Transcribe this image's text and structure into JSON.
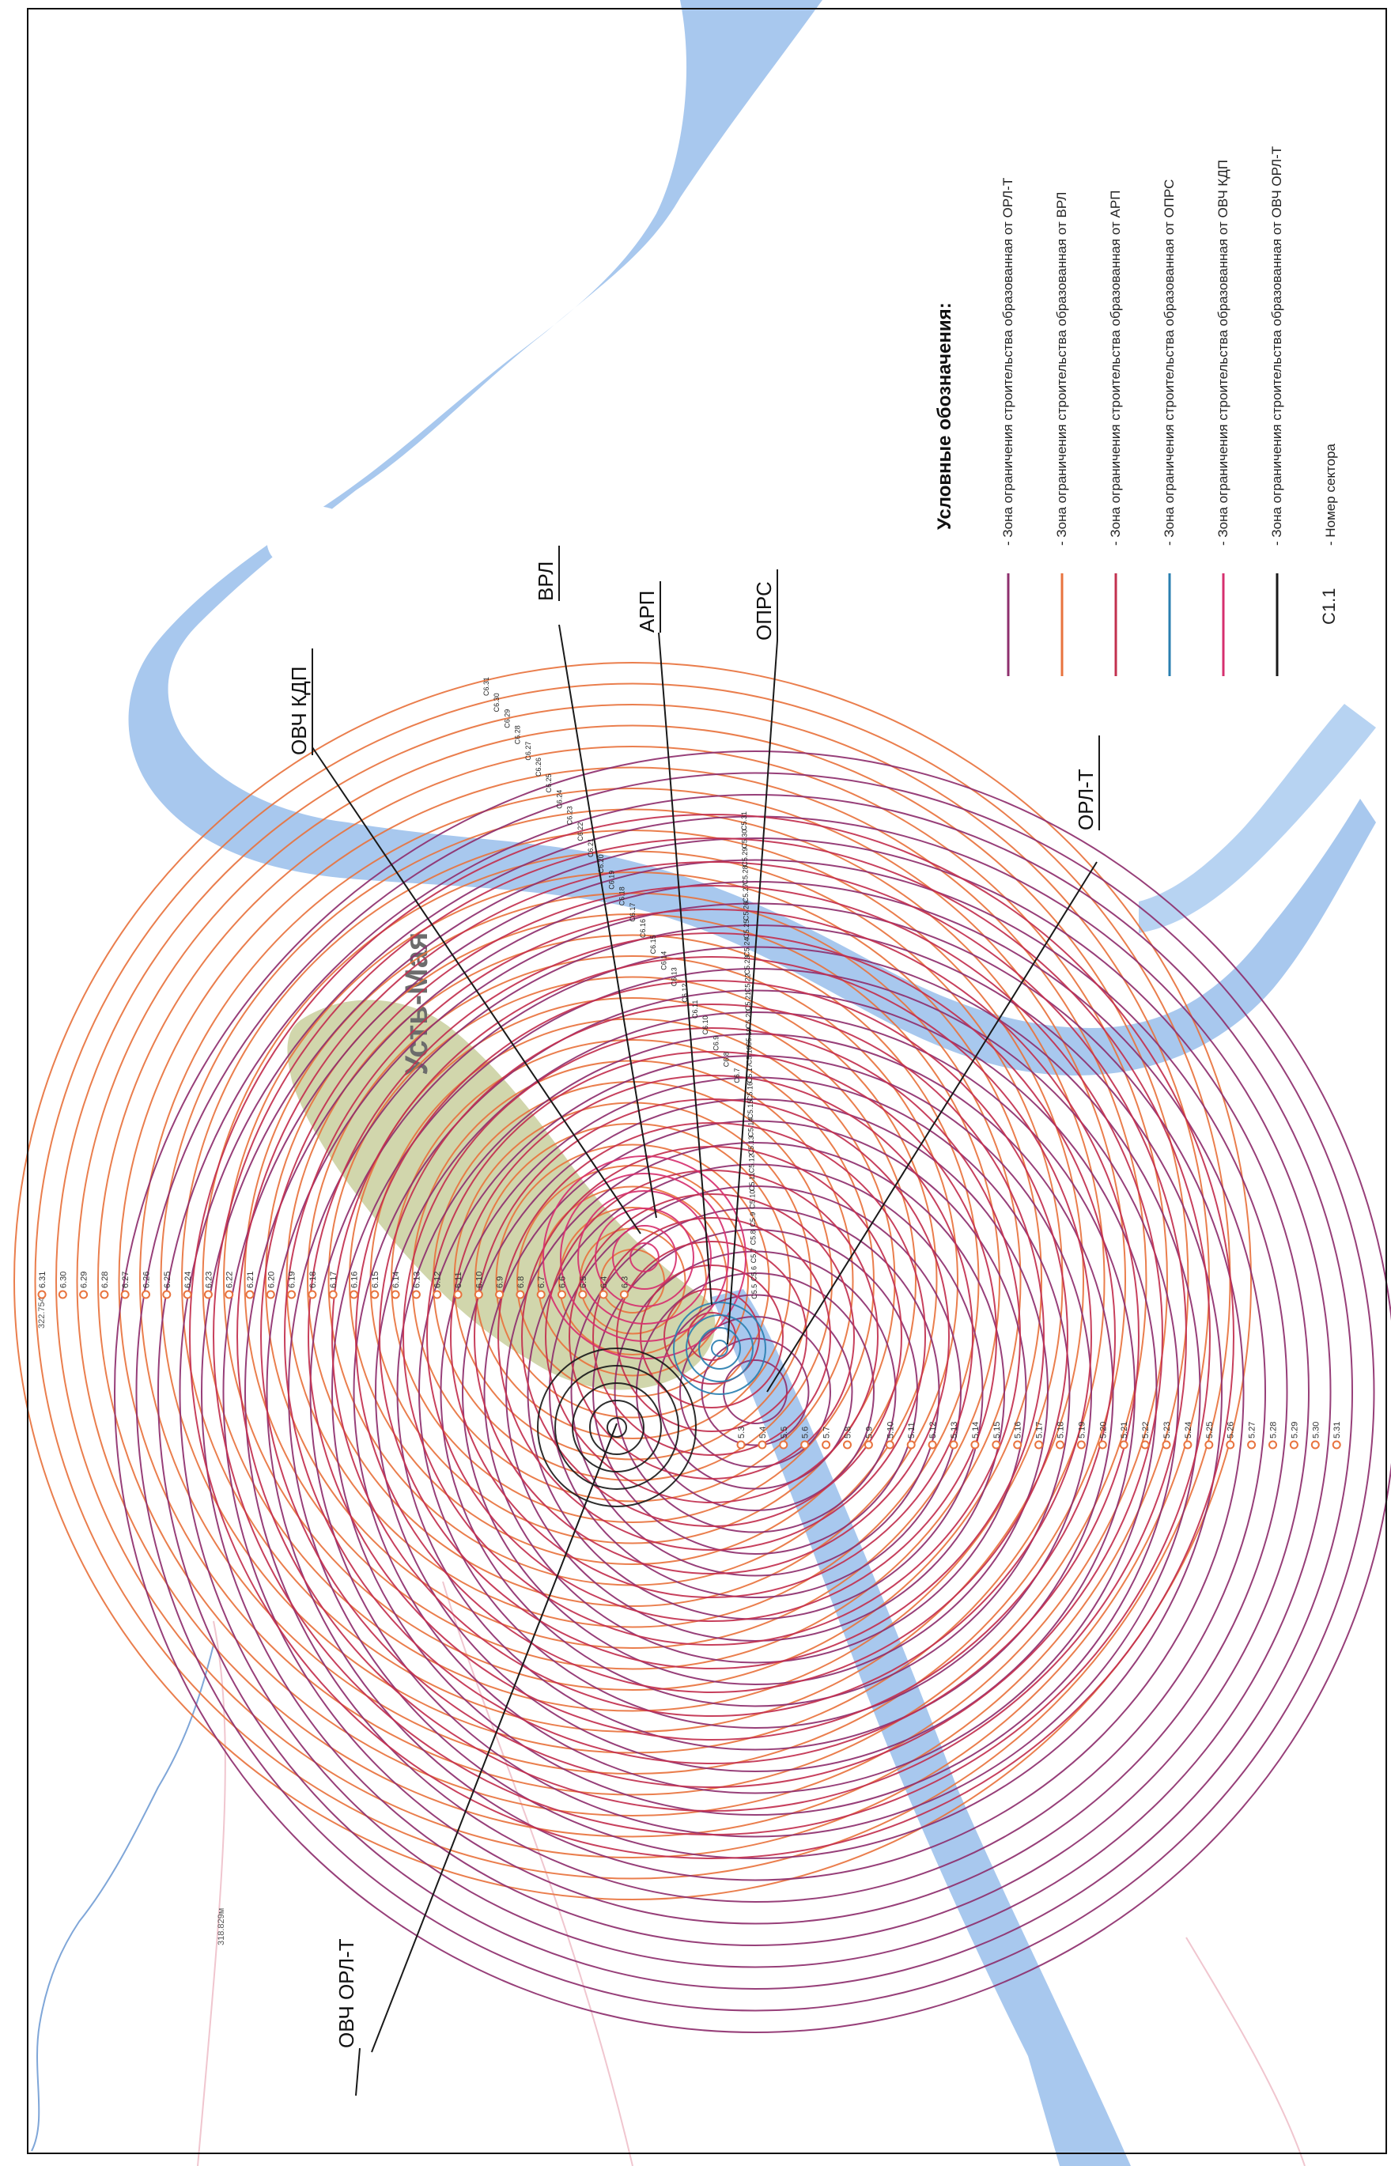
{
  "map": {
    "town_label": "Усть-Мая",
    "distance_labels": [
      "322.754м",
      "318.829м",
      "318.829м"
    ],
    "colors": {
      "river": "#a8c8ee",
      "river_edge": "#8fb6e4",
      "town": "#c9cf9e",
      "road": "#f0c6cf",
      "stream": "#7fa6d8",
      "orl_t": "#8e2f6e",
      "vrl": "#e8733e",
      "arp": "#c2304f",
      "oprs": "#2a7fb0",
      "ovch_kdp": "#d6306f",
      "ovch_orl_t": "#1a1a1a",
      "marker": "#f2a021"
    }
  },
  "sources": [
    {
      "id": "ovch_orl_t",
      "label": "ОВЧ ОРЛ-Т",
      "color_key": "ovch_orl_t"
    },
    {
      "id": "ovch_kdp",
      "label": "ОВЧ КДП",
      "color_key": "ovch_kdp"
    },
    {
      "id": "vrl",
      "label": "ВРЛ",
      "color_key": "vrl"
    },
    {
      "id": "arp",
      "label": "АРП",
      "color_key": "arp"
    },
    {
      "id": "oprs",
      "label": "ОПРС",
      "color_key": "oprs"
    },
    {
      "id": "orl_t",
      "label": "ОРЛ-Т",
      "color_key": "orl_t"
    }
  ],
  "sectors": {
    "vrl_row": [
      "6.31",
      "6.30",
      "6.29",
      "6.28",
      "6.27",
      "6.26",
      "6.25",
      "6.24",
      "6.23",
      "6.22",
      "6.21",
      "6.20",
      "6.19",
      "6.18",
      "6.17",
      "6.16",
      "6.15",
      "6.14",
      "6.13",
      "6.12",
      "6.11",
      "6.10",
      "6.9",
      "6.8",
      "6.7",
      "6.6",
      "6.5",
      "6.4",
      "6.3"
    ],
    "orl_row": [
      "5.3",
      "5.4",
      "5.5",
      "5.6",
      "5.7",
      "5.8",
      "5.9",
      "5.10",
      "5.11",
      "5.12",
      "5.13",
      "5.14",
      "5.15",
      "5.16",
      "5.17",
      "5.18",
      "5.19",
      "5.20",
      "5.21",
      "5.22",
      "5.23",
      "5.24",
      "5.25",
      "5.26",
      "5.27",
      "5.28",
      "5.29",
      "5.30",
      "5.31"
    ],
    "c6_diag": [
      "С6.31",
      "С6.30",
      "С6.29",
      "С6.28",
      "С6.27",
      "С6.26",
      "С6.25",
      "С6.24",
      "С6.23",
      "С6.22",
      "С6.21",
      "С6.20",
      "С6.19",
      "С6.18",
      "С6.17",
      "С6.16",
      "С6.15",
      "С6.14",
      "С6.13",
      "С6.12",
      "С6.11",
      "С6.10",
      "С6.9",
      "С6.8",
      "С6.7"
    ],
    "c5_diag": [
      "С5.31",
      "С5.30",
      "С5.29",
      "С5.28",
      "С5.27",
      "С5.26",
      "С5.25",
      "С5.24",
      "С5.23",
      "С5.22",
      "С5.21",
      "С5.20",
      "С5.19",
      "С5.18",
      "С5.17",
      "С5.16",
      "С5.15",
      "С5.14",
      "С5.13",
      "С5.12",
      "С5.11",
      "С5.10",
      "С5.9",
      "С5.8",
      "С5.7",
      "С5.6",
      "С5.5"
    ]
  },
  "legend": {
    "title": "Условные обозначения:",
    "items": [
      {
        "text": "- Зона ограничения строительства образованная от ОРЛ-Т",
        "color_key": "orl_t"
      },
      {
        "text": "- Зона ограничения строительства образованная от ВРЛ",
        "color_key": "vrl"
      },
      {
        "text": "- Зона ограничения строительства образованная от АРП",
        "color_key": "arp"
      },
      {
        "text": "- Зона ограничения строительства образованная от ОПРС",
        "color_key": "oprs"
      },
      {
        "text": "- Зона ограничения строительства образованная от ОВЧ КДП",
        "color_key": "ovch_kdp"
      },
      {
        "text": "- Зона ограничения строительства образованная от ОВЧ ОРЛ-Т",
        "color_key": "ovch_orl_t"
      }
    ],
    "sector_item": {
      "symbol": "С1.1",
      "text": "- Номер сектора"
    }
  }
}
